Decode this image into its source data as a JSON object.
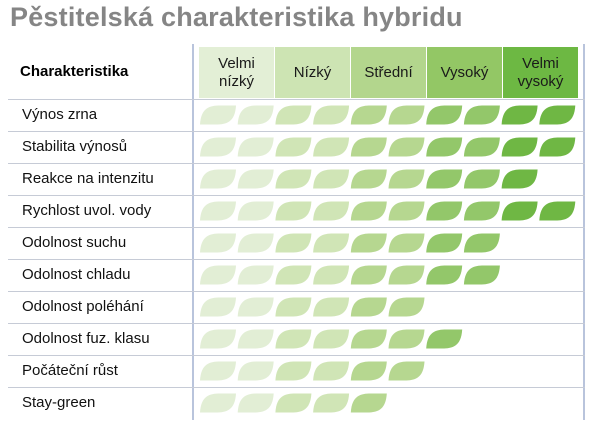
{
  "title": "Pěstitelská charakteristika hybridu",
  "header_label": "Charakteristika",
  "levels": [
    {
      "label_lines": [
        "Velmi",
        "nízký"
      ],
      "color": "#e3efd6"
    },
    {
      "label_lines": [
        "Nízký"
      ],
      "color": "#cde4b3"
    },
    {
      "label_lines": [
        "Střední"
      ],
      "color": "#b3d68d"
    },
    {
      "label_lines": [
        "Vysoký"
      ],
      "color": "#93c765"
    },
    {
      "label_lines": [
        "Velmi",
        "vysoký"
      ],
      "color": "#6db843"
    }
  ],
  "leaf_colors": [
    "#e2eed5",
    "#e2eed5",
    "#d0e5b6",
    "#d0e5b6",
    "#b6d790",
    "#b6d790",
    "#93c76a",
    "#93c76a",
    "#6fb744",
    "#6fb744"
  ],
  "rows": [
    {
      "label": "Výnos zrna",
      "leaves": 10
    },
    {
      "label": "Stabilita výnosů",
      "leaves": 10
    },
    {
      "label": "Reakce na intenzitu",
      "leaves": 9
    },
    {
      "label": "Rychlost uvol. vody",
      "leaves": 10
    },
    {
      "label": "Odolnost suchu",
      "leaves": 8
    },
    {
      "label": "Odolnost chladu",
      "leaves": 8
    },
    {
      "label": "Odolnost poléhání",
      "leaves": 6
    },
    {
      "label": "Odolnost fuz. klasu",
      "leaves": 7
    },
    {
      "label": "Počáteční růst",
      "leaves": 6
    },
    {
      "label": "Stay-green",
      "leaves": 5
    }
  ]
}
